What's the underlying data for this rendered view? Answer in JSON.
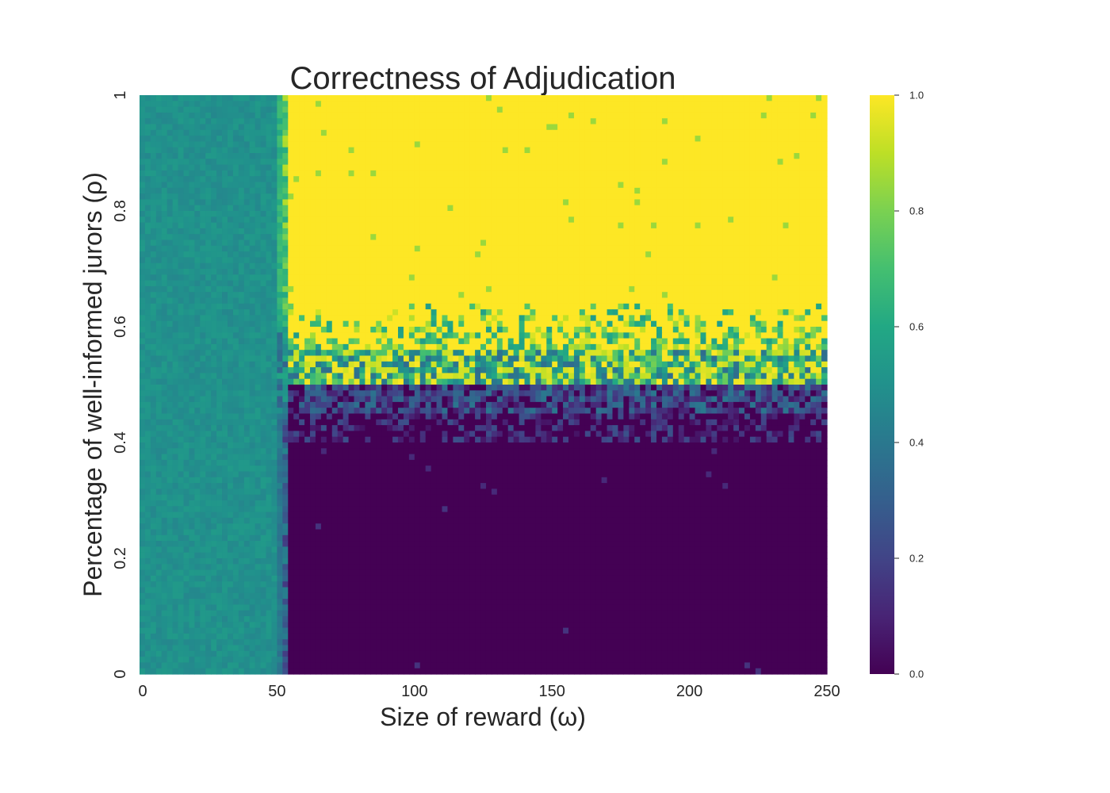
{
  "chart_data": {
    "type": "heatmap",
    "title": "Correctness of Adjudication",
    "xlabel": "Size of reward (ω)",
    "ylabel": "Percentage of well-informed jurors (ρ)",
    "xlim": [
      0,
      250
    ],
    "ylim": [
      0,
      1
    ],
    "x_ticks": [
      "0",
      "50",
      "100",
      "150",
      "200",
      "250"
    ],
    "y_ticks": [
      "0",
      "0.2",
      "0.4",
      "0.6",
      "0.8",
      "1"
    ],
    "colorbar": {
      "colormap": "viridis",
      "range": [
        0.0,
        1.0
      ],
      "ticks": [
        "0.0",
        "0.2",
        "0.4",
        "0.6",
        "0.8",
        "1.0"
      ]
    },
    "grid": {
      "columns": 125,
      "rows": 100,
      "description_of_values": "Approximate reconstruction of the plotted field",
      "regions": [
        {
          "x_range": [
            0,
            50
          ],
          "y_range": [
            0,
            1
          ],
          "value": 0.5,
          "noise": 0.04
        },
        {
          "x_range": [
            50,
            55
          ],
          "y_range": [
            0,
            1
          ],
          "value": "transition"
        },
        {
          "x_range": [
            55,
            250
          ],
          "y_range": [
            0.62,
            1
          ],
          "value": 1.0
        },
        {
          "x_range": [
            55,
            250
          ],
          "y_range": [
            0.5,
            0.62
          ],
          "value": "mixed, mostly high"
        },
        {
          "x_range": [
            55,
            250
          ],
          "y_range": [
            0.4,
            0.5
          ],
          "value": "mixed, mostly low"
        },
        {
          "x_range": [
            55,
            250
          ],
          "y_range": [
            0,
            0.4
          ],
          "value": 0.0
        }
      ]
    }
  }
}
